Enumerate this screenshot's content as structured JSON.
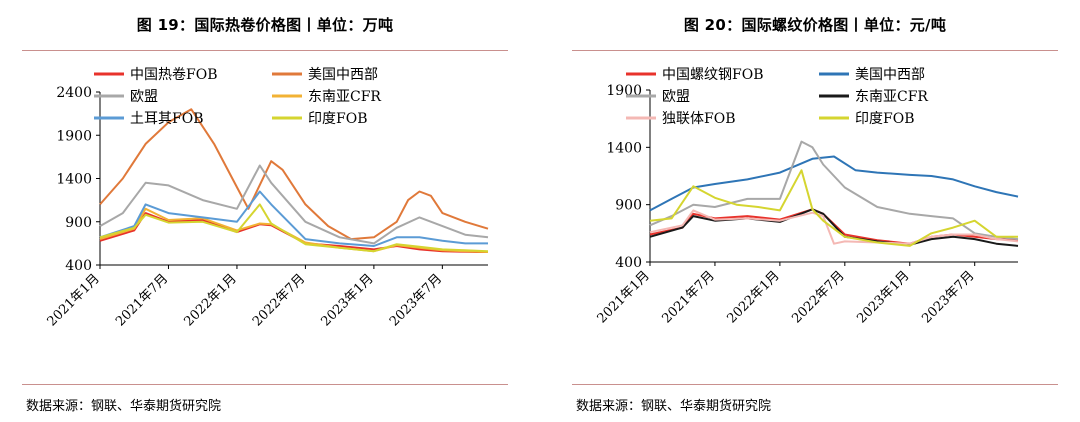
{
  "charts": [
    {
      "title": "图 19：国际热卷价格图丨单位：万吨",
      "source": "数据来源：钢联、华泰期货研究院"
    },
    {
      "title": "图 20：国际螺纹价格图丨单位：元/吨",
      "source": "数据来源：钢联、华泰期货研究院"
    }
  ],
  "chart_data": [
    {
      "type": "line",
      "title": "图 19：国际热卷价格图丨单位：万吨",
      "ylim": [
        400,
        2400
      ],
      "yticks": [
        400,
        900,
        1400,
        1900,
        2400
      ],
      "xlim": [
        "2021-01",
        "2023-11"
      ],
      "xticks": [
        "2021年1月",
        "2021年7月",
        "2022年1月",
        "2022年7月",
        "2023年1月",
        "2023年7月"
      ],
      "grid": false,
      "legend_position": "top",
      "series": [
        {
          "name": "中国热卷FOB",
          "color": "#e8322b",
          "x": [
            "2021-01",
            "2021-04",
            "2021-05",
            "2021-07",
            "2021-10",
            "2022-01",
            "2022-03",
            "2022-04",
            "2022-07",
            "2022-10",
            "2023-01",
            "2023-03",
            "2023-05",
            "2023-07",
            "2023-10",
            "2023-11"
          ],
          "values": [
            680,
            800,
            1000,
            900,
            920,
            780,
            870,
            860,
            650,
            620,
            580,
            620,
            580,
            560,
            550,
            550
          ]
        },
        {
          "name": "美国中西部",
          "color": "#e0793a",
          "x": [
            "2021-01",
            "2021-03",
            "2021-05",
            "2021-07",
            "2021-09",
            "2021-11",
            "2022-01",
            "2022-02",
            "2022-04",
            "2022-05",
            "2022-07",
            "2022-09",
            "2022-11",
            "2023-01",
            "2023-03",
            "2023-04",
            "2023-05",
            "2023-06",
            "2023-07",
            "2023-09",
            "2023-11"
          ],
          "values": [
            1100,
            1400,
            1800,
            2050,
            2200,
            1800,
            1300,
            1050,
            1600,
            1500,
            1100,
            850,
            700,
            720,
            900,
            1150,
            1250,
            1200,
            1000,
            900,
            820
          ]
        },
        {
          "name": "欧盟",
          "color": "#a8a8a8",
          "x": [
            "2021-01",
            "2021-03",
            "2021-05",
            "2021-07",
            "2021-10",
            "2022-01",
            "2022-03",
            "2022-04",
            "2022-07",
            "2022-10",
            "2023-01",
            "2023-03",
            "2023-05",
            "2023-07",
            "2023-09",
            "2023-11"
          ],
          "values": [
            850,
            1000,
            1350,
            1320,
            1150,
            1050,
            1550,
            1350,
            900,
            720,
            650,
            830,
            950,
            850,
            750,
            720
          ]
        },
        {
          "name": "东南亚CFR",
          "color": "#f2b234",
          "x": [
            "2021-01",
            "2021-04",
            "2021-05",
            "2021-07",
            "2021-10",
            "2022-01",
            "2022-03",
            "2022-04",
            "2022-07",
            "2022-10",
            "2023-01",
            "2023-03",
            "2023-05",
            "2023-07",
            "2023-09",
            "2023-11"
          ],
          "values": [
            700,
            820,
            1050,
            920,
            940,
            800,
            880,
            870,
            660,
            600,
            560,
            630,
            600,
            570,
            560,
            550
          ]
        },
        {
          "name": "土耳其FOB",
          "color": "#5b9bd5",
          "x": [
            "2021-01",
            "2021-04",
            "2021-05",
            "2021-07",
            "2021-10",
            "2022-01",
            "2022-03",
            "2022-04",
            "2022-07",
            "2022-10",
            "2023-01",
            "2023-03",
            "2023-05",
            "2023-07",
            "2023-09",
            "2023-11"
          ],
          "values": [
            720,
            850,
            1100,
            1000,
            950,
            900,
            1250,
            1100,
            700,
            650,
            620,
            720,
            720,
            680,
            650,
            650
          ]
        },
        {
          "name": "印度FOB",
          "color": "#d5d530",
          "x": [
            "2021-01",
            "2021-04",
            "2021-05",
            "2021-07",
            "2021-10",
            "2022-01",
            "2022-03",
            "2022-04",
            "2022-07",
            "2022-10",
            "2023-01",
            "2023-03",
            "2023-05",
            "2023-07",
            "2023-09",
            "2023-11"
          ],
          "values": [
            720,
            830,
            980,
            890,
            900,
            780,
            1100,
            880,
            640,
            600,
            560,
            640,
            610,
            580,
            570,
            560
          ]
        }
      ]
    },
    {
      "type": "line",
      "title": "图 20：国际螺纹价格图丨单位：元/吨",
      "ylim": [
        400,
        1900
      ],
      "yticks": [
        400,
        900,
        1400,
        1900
      ],
      "xlim": [
        "2021-01",
        "2023-11"
      ],
      "xticks": [
        "2021年1月",
        "2021年7月",
        "2022年1月",
        "2022年7月",
        "2023年1月",
        "2023年7月"
      ],
      "grid": false,
      "legend_position": "top",
      "series": [
        {
          "name": "中国螺纹钢FOB",
          "color": "#e8322b",
          "x": [
            "2021-01",
            "2021-04",
            "2021-05",
            "2021-07",
            "2021-10",
            "2022-01",
            "2022-04",
            "2022-05",
            "2022-07",
            "2022-10",
            "2023-01",
            "2023-03",
            "2023-05",
            "2023-07",
            "2023-09",
            "2023-11"
          ],
          "values": [
            640,
            700,
            820,
            780,
            800,
            770,
            860,
            820,
            640,
            590,
            560,
            620,
            640,
            620,
            600,
            590
          ]
        },
        {
          "name": "美国中西部",
          "color": "#2e75b6",
          "x": [
            "2021-01",
            "2021-03",
            "2021-05",
            "2021-07",
            "2021-10",
            "2022-01",
            "2022-04",
            "2022-06",
            "2022-08",
            "2022-10",
            "2023-01",
            "2023-03",
            "2023-05",
            "2023-07",
            "2023-09",
            "2023-11"
          ],
          "values": [
            850,
            950,
            1050,
            1080,
            1120,
            1180,
            1300,
            1320,
            1200,
            1180,
            1160,
            1150,
            1120,
            1060,
            1010,
            970
          ]
        },
        {
          "name": "欧盟",
          "color": "#a8a8a8",
          "x": [
            "2021-01",
            "2021-03",
            "2021-05",
            "2021-07",
            "2021-10",
            "2022-01",
            "2022-03",
            "2022-04",
            "2022-05",
            "2022-07",
            "2022-10",
            "2023-01",
            "2023-03",
            "2023-05",
            "2023-07",
            "2023-09",
            "2023-11"
          ],
          "values": [
            720,
            800,
            900,
            880,
            950,
            950,
            1450,
            1400,
            1250,
            1050,
            880,
            820,
            800,
            780,
            650,
            620,
            600
          ]
        },
        {
          "name": "东南亚CFR",
          "color": "#1a1a1a",
          "x": [
            "2021-01",
            "2021-04",
            "2021-05",
            "2021-07",
            "2021-10",
            "2022-01",
            "2022-04",
            "2022-05",
            "2022-07",
            "2022-10",
            "2023-01",
            "2023-03",
            "2023-05",
            "2023-07",
            "2023-09",
            "2023-11"
          ],
          "values": [
            620,
            700,
            800,
            760,
            780,
            750,
            860,
            820,
            620,
            580,
            550,
            600,
            620,
            600,
            560,
            540
          ]
        },
        {
          "name": "独联体FOB",
          "color": "#f4b8b4",
          "x": [
            "2021-01",
            "2021-04",
            "2021-05",
            "2021-07",
            "2021-10",
            "2022-01",
            "2022-04",
            "2022-05",
            "2022-06",
            "2022-07",
            "2022-10",
            "2023-01",
            "2023-03",
            "2023-05",
            "2023-07",
            "2023-09",
            "2023-11"
          ],
          "values": [
            660,
            720,
            850,
            770,
            780,
            760,
            830,
            800,
            560,
            580,
            570,
            560,
            620,
            640,
            640,
            600,
            580
          ]
        },
        {
          "name": "印度FOB",
          "color": "#d5d530",
          "x": [
            "2021-01",
            "2021-03",
            "2021-05",
            "2021-07",
            "2021-09",
            "2021-11",
            "2022-01",
            "2022-03",
            "2022-04",
            "2022-05",
            "2022-07",
            "2022-10",
            "2023-01",
            "2023-03",
            "2023-05",
            "2023-07",
            "2023-09",
            "2023-11"
          ],
          "values": [
            760,
            780,
            1060,
            960,
            900,
            880,
            850,
            1200,
            860,
            760,
            620,
            570,
            540,
            650,
            700,
            760,
            620,
            620
          ]
        }
      ]
    }
  ]
}
